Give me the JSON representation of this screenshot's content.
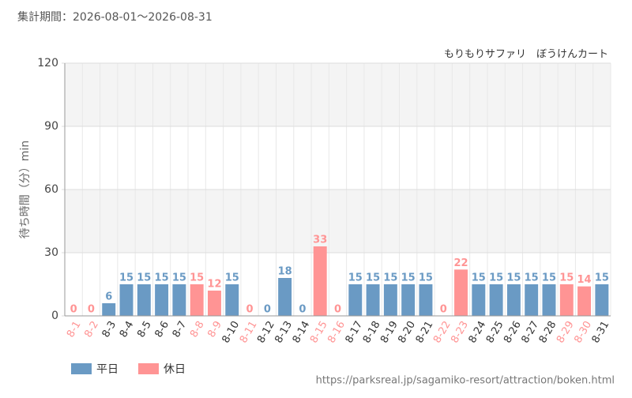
{
  "chart_data": {
    "type": "bar",
    "title": "集計期間：2026-08-01～2026-08-31",
    "subtitle": "もりもりサファリ　ぼうけんカート",
    "y_label": "待ち時間（分）min",
    "source": "https://parksreal.jp/sagamiko-resort/attraction/boken.html",
    "categories": [
      "8-1",
      "8-2",
      "8-3",
      "8-4",
      "8-5",
      "8-6",
      "8-7",
      "8-8",
      "8-9",
      "8-10",
      "8-11",
      "8-12",
      "8-13",
      "8-14",
      "8-15",
      "8-16",
      "8-17",
      "8-18",
      "8-19",
      "8-20",
      "8-21",
      "8-22",
      "8-23",
      "8-24",
      "8-25",
      "8-26",
      "8-27",
      "8-28",
      "8-29",
      "8-30",
      "8-31"
    ],
    "series": [
      {
        "name": "平日",
        "color": "#6a9ac4",
        "values": [
          null,
          null,
          6,
          15,
          15,
          15,
          15,
          null,
          null,
          15,
          null,
          0,
          18,
          0,
          null,
          null,
          15,
          15,
          15,
          15,
          15,
          null,
          null,
          15,
          15,
          15,
          15,
          15,
          null,
          null,
          15
        ]
      },
      {
        "name": "休日",
        "color": "#ff9494",
        "values": [
          0,
          0,
          null,
          null,
          null,
          null,
          null,
          15,
          12,
          null,
          0,
          null,
          null,
          null,
          33,
          0,
          null,
          null,
          null,
          null,
          null,
          0,
          22,
          null,
          null,
          null,
          null,
          null,
          15,
          14,
          null
        ]
      }
    ],
    "ylim": [
      0,
      120
    ],
    "yticks": [
      0,
      30,
      60,
      90,
      120
    ],
    "grid": true
  }
}
